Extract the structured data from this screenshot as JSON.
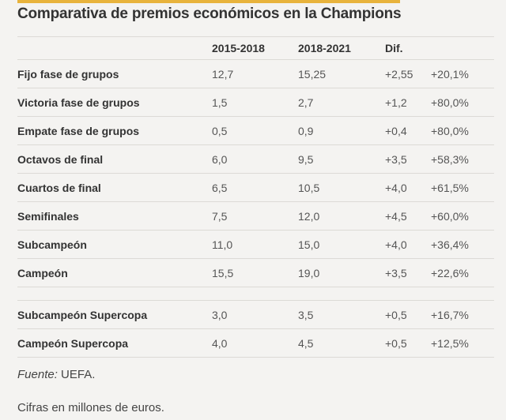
{
  "title": "Comparativa de premios económicos en la Champions",
  "header": {
    "col1": "2015-2018",
    "col2": "2018-2021",
    "col3": "Dif.",
    "col4": ""
  },
  "rows": [
    {
      "label": "Fijo fase de grupos",
      "v1": "12,7",
      "v2": "15,25",
      "diff": "+2,55",
      "pct": "+20,1%"
    },
    {
      "label": "Victoria fase de grupos",
      "v1": "1,5",
      "v2": "2,7",
      "diff": "+1,2",
      "pct": "+80,0%"
    },
    {
      "label": "Empate fase de grupos",
      "v1": "0,5",
      "v2": "0,9",
      "diff": "+0,4",
      "pct": "+80,0%"
    },
    {
      "label": "Octavos de final",
      "v1": "6,0",
      "v2": "9,5",
      "diff": "+3,5",
      "pct": "+58,3%"
    },
    {
      "label": "Cuartos de final",
      "v1": "6,5",
      "v2": "10,5",
      "diff": "+4,0",
      "pct": "+61,5%"
    },
    {
      "label": "Semifinales",
      "v1": "7,5",
      "v2": "12,0",
      "diff": "+4,5",
      "pct": "+60,0%"
    },
    {
      "label": "Subcampeón",
      "v1": "11,0",
      "v2": "15,0",
      "diff": "+4,0",
      "pct": "+36,4%"
    },
    {
      "label": "Campeón",
      "v1": "15,5",
      "v2": "19,0",
      "diff": "+3,5",
      "pct": "+22,6%"
    }
  ],
  "supercopa_rows": [
    {
      "label": "Subcampeón Supercopa",
      "v1": "3,0",
      "v2": "3,5",
      "diff": "+0,5",
      "pct": "+16,7%"
    },
    {
      "label": "Campeón Supercopa",
      "v1": "4,0",
      "v2": "4,5",
      "diff": "+0,5",
      "pct": "+12,5%"
    }
  ],
  "footer": {
    "source_label": "Fuente:",
    "source": " UEFA.",
    "note": "Cifras en millones de euros."
  },
  "colors": {
    "accent": "#e8b33c",
    "background": "#f4f3f1"
  }
}
